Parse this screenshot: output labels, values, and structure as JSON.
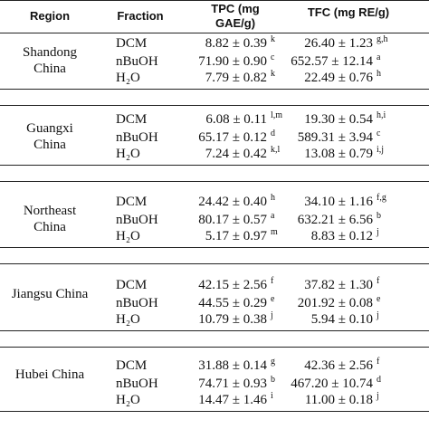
{
  "table": {
    "header": [
      "Region",
      "Fraction",
      "TPC (mg GAE/g)",
      "TFC (mg RE/g)"
    ],
    "groups": [
      {
        "region": "Shandong China",
        "rows": [
          {
            "fraction": "DCM",
            "tpc": "8.82 ± 0.39",
            "tpc_sup": "k",
            "tfc": "26.40 ± 1.23",
            "tfc_sup": "g,h"
          },
          {
            "fraction": "nBuOH",
            "tpc": "71.90 ± 0.90",
            "tpc_sup": "c",
            "tfc": "652.57 ± 12.14",
            "tfc_sup": "a"
          },
          {
            "fraction": "H₂O",
            "tpc": "7.79 ± 0.82",
            "tpc_sup": "k",
            "tfc": "22.49 ± 0.76",
            "tfc_sup": "h"
          }
        ]
      },
      {
        "region": "Guangxi China",
        "rows": [
          {
            "fraction": "DCM",
            "tpc": "6.08 ± 0.11",
            "tpc_sup": "l,m",
            "tfc": "19.30 ± 0.54",
            "tfc_sup": "h,i"
          },
          {
            "fraction": "nBuOH",
            "tpc": "65.17 ± 0.12",
            "tpc_sup": "d",
            "tfc": "589.31 ± 3.94",
            "tfc_sup": "c"
          },
          {
            "fraction": "H₂O",
            "tpc": "7.24 ± 0.42",
            "tpc_sup": "k,l",
            "tfc": "13.08 ± 0.79",
            "tfc_sup": "i,j"
          }
        ]
      },
      {
        "region": "Northeast China",
        "rows": [
          {
            "fraction": "DCM",
            "tpc": "24.42 ± 0.40",
            "tpc_sup": "h",
            "tfc": "34.10 ± 1.16",
            "tfc_sup": "f,g"
          },
          {
            "fraction": "nBuOH",
            "tpc": "80.17 ± 0.57",
            "tpc_sup": "a",
            "tfc": "632.21 ± 6.56",
            "tfc_sup": "b"
          },
          {
            "fraction": "H₂O",
            "tpc": "5.17 ± 0.97",
            "tpc_sup": "m",
            "tfc": "8.83 ± 0.12",
            "tfc_sup": "j"
          }
        ]
      },
      {
        "region": "Jiangsu China",
        "rows": [
          {
            "fraction": "DCM",
            "tpc": "42.15 ± 2.56",
            "tpc_sup": "f",
            "tfc": "37.82 ± 1.30",
            "tfc_sup": "f"
          },
          {
            "fraction": "nBuOH",
            "tpc": "44.55 ± 0.29",
            "tpc_sup": "e",
            "tfc": "201.92 ± 0.08",
            "tfc_sup": "e"
          },
          {
            "fraction": "H₂O",
            "tpc": "10.79 ± 0.38",
            "tpc_sup": "j",
            "tfc": "5.94 ± 0.10",
            "tfc_sup": "j"
          }
        ]
      },
      {
        "region": "Hubei China",
        "rows": [
          {
            "fraction": "DCM",
            "tpc": "31.88 ± 0.14",
            "tpc_sup": "g",
            "tfc": "42.36 ± 2.56",
            "tfc_sup": "f"
          },
          {
            "fraction": "nBuOH",
            "tpc": "74.71 ± 0.93",
            "tpc_sup": "b",
            "tfc": "467.20 ± 10.74",
            "tfc_sup": "d"
          },
          {
            "fraction": "H₂O",
            "tpc": "14.47 ± 1.46",
            "tpc_sup": "i",
            "tfc": "11.00 ± 0.18",
            "tfc_sup": "j"
          }
        ]
      }
    ]
  }
}
